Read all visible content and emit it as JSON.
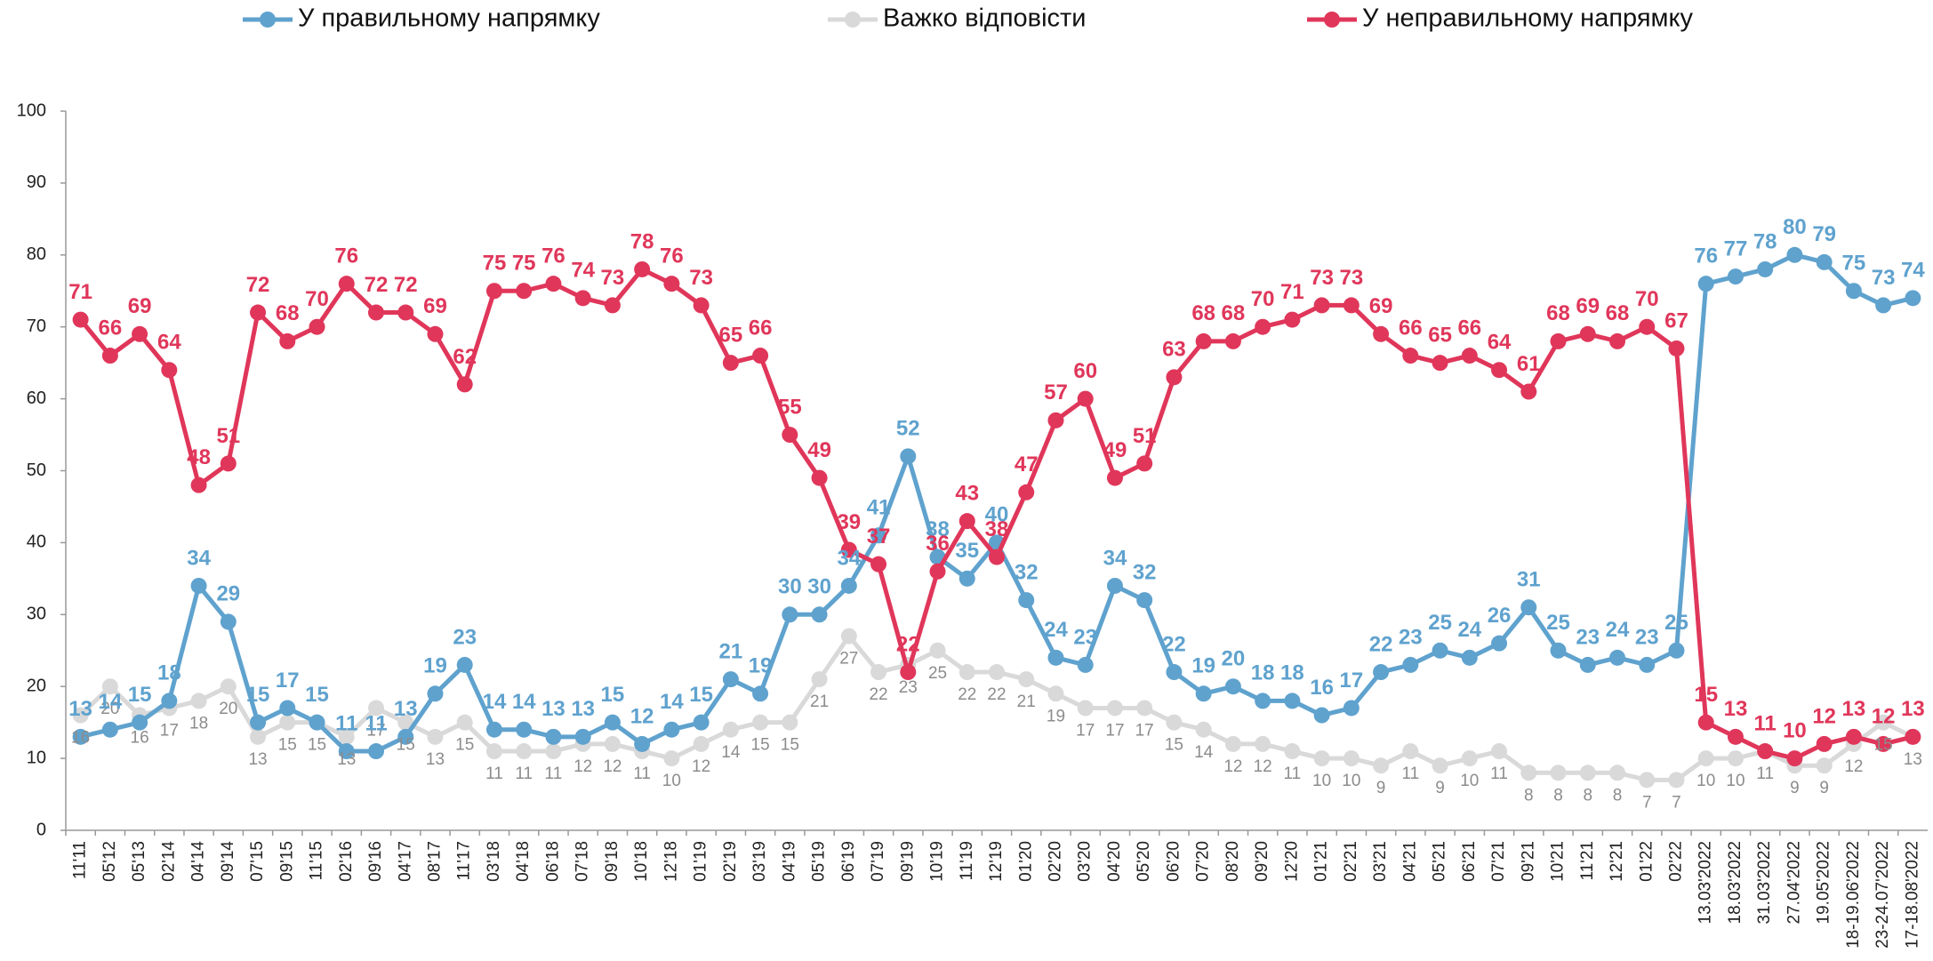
{
  "chart_data": {
    "type": "line",
    "categories": [
      "11'11",
      "05'12",
      "05'13",
      "02'14",
      "04'14",
      "09'14",
      "07'15",
      "09'15",
      "11'15",
      "02'16",
      "09'16",
      "04'17",
      "08'17",
      "11'17",
      "03'18",
      "04'18",
      "06'18",
      "07'18",
      "09'18",
      "10'18",
      "12'18",
      "01'19",
      "02'19",
      "03'19",
      "04'19",
      "05'19",
      "06'19",
      "07'19",
      "09'19",
      "10'19",
      "11'19",
      "12'19",
      "01'20",
      "02'20",
      "03'20",
      "04'20",
      "05'20",
      "06'20",
      "07'20",
      "08'20",
      "09'20",
      "12'20",
      "01'21",
      "02'21",
      "03'21",
      "04'21",
      "05'21",
      "06'21",
      "07'21",
      "09'21",
      "10'21",
      "11'21",
      "12'21",
      "01'22",
      "02'22",
      "13.03'2022",
      "18.03'2022",
      "31.03'2022",
      "27.04'2022",
      "19.05'2022",
      "18-19.06'2022",
      "23-24.07'2022",
      "17-18.08'2022"
    ],
    "series": [
      {
        "name": "У правильному напрямку",
        "color": "#5fa2ce",
        "values": [
          13,
          14,
          15,
          18,
          34,
          29,
          15,
          17,
          15,
          11,
          11,
          13,
          19,
          23,
          14,
          14,
          13,
          13,
          15,
          12,
          14,
          15,
          21,
          19,
          30,
          30,
          34,
          41,
          52,
          38,
          35,
          40,
          32,
          24,
          23,
          34,
          32,
          22,
          19,
          20,
          18,
          18,
          16,
          17,
          22,
          23,
          25,
          24,
          26,
          31,
          25,
          23,
          24,
          23,
          25,
          76,
          77,
          78,
          80,
          79,
          75,
          73,
          74
        ]
      },
      {
        "name": "Важко відповісти",
        "color": "#d9d9d9",
        "values": [
          16,
          20,
          16,
          17,
          18,
          20,
          13,
          15,
          15,
          13,
          17,
          15,
          13,
          15,
          11,
          11,
          11,
          12,
          12,
          11,
          10,
          12,
          14,
          15,
          15,
          21,
          27,
          22,
          23,
          25,
          22,
          22,
          21,
          19,
          17,
          17,
          17,
          15,
          14,
          12,
          12,
          11,
          10,
          10,
          9,
          11,
          9,
          10,
          11,
          8,
          8,
          8,
          8,
          7,
          7,
          10,
          10,
          11,
          9,
          9,
          12,
          15,
          13
        ]
      },
      {
        "name": "У неправильному напрямку",
        "color": "#e0365a",
        "values": [
          71,
          66,
          69,
          64,
          48,
          51,
          72,
          68,
          70,
          76,
          72,
          72,
          69,
          62,
          75,
          75,
          76,
          74,
          73,
          78,
          76,
          73,
          65,
          66,
          55,
          49,
          39,
          37,
          22,
          36,
          43,
          38,
          47,
          57,
          60,
          49,
          51,
          63,
          68,
          68,
          70,
          71,
          73,
          73,
          69,
          66,
          65,
          66,
          64,
          61,
          68,
          69,
          68,
          70,
          67,
          15,
          13,
          11,
          10,
          12,
          13,
          12,
          13
        ]
      }
    ],
    "ylim": [
      0,
      100
    ],
    "yticks": [
      0,
      10,
      20,
      30,
      40,
      50,
      60,
      70,
      80,
      90,
      100
    ],
    "grid": false,
    "legend": "top"
  }
}
